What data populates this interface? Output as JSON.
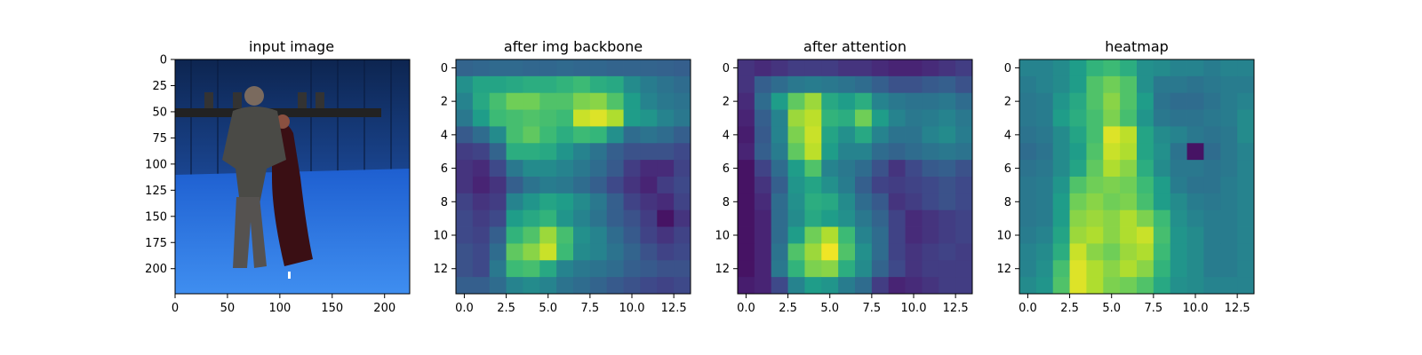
{
  "chart_data": [
    {
      "type": "image",
      "title": "input image",
      "image_size": [
        224,
        224
      ],
      "xticks": [
        0,
        50,
        100,
        150,
        200
      ],
      "yticks": [
        0,
        25,
        50,
        75,
        100,
        125,
        150,
        175,
        200
      ],
      "tick_labels_x": [
        "0",
        "50",
        "100",
        "150",
        "200"
      ],
      "tick_labels_y": [
        "0",
        "25",
        "50",
        "75",
        "100",
        "125",
        "150",
        "175",
        "200"
      ]
    },
    {
      "type": "heatmap",
      "title": "after img backbone",
      "colormap": "viridis",
      "vrange": [
        0,
        1
      ],
      "xticks": [
        0.0,
        2.5,
        5.0,
        7.5,
        10.0,
        12.5
      ],
      "tick_labels_x": [
        "0.0",
        "2.5",
        "5.0",
        "7.5",
        "10.0",
        "12.5"
      ],
      "yticks": [
        0,
        2,
        4,
        6,
        8,
        10,
        12
      ],
      "tick_labels_y": [
        "0",
        "2",
        "4",
        "6",
        "8",
        "10",
        "12"
      ],
      "values": [
        [
          0.32,
          0.33,
          0.34,
          0.34,
          0.33,
          0.33,
          0.34,
          0.33,
          0.33,
          0.32,
          0.32,
          0.32,
          0.31,
          0.3
        ],
        [
          0.5,
          0.58,
          0.58,
          0.6,
          0.62,
          0.62,
          0.65,
          0.68,
          0.62,
          0.6,
          0.48,
          0.42,
          0.38,
          0.35
        ],
        [
          0.45,
          0.6,
          0.7,
          0.78,
          0.78,
          0.72,
          0.72,
          0.8,
          0.82,
          0.72,
          0.55,
          0.45,
          0.4,
          0.38
        ],
        [
          0.4,
          0.55,
          0.68,
          0.7,
          0.72,
          0.7,
          0.68,
          0.92,
          0.95,
          0.88,
          0.55,
          0.52,
          0.45,
          0.4
        ],
        [
          0.28,
          0.35,
          0.48,
          0.7,
          0.75,
          0.68,
          0.62,
          0.68,
          0.66,
          0.5,
          0.35,
          0.38,
          0.35,
          0.3
        ],
        [
          0.18,
          0.2,
          0.32,
          0.62,
          0.62,
          0.6,
          0.52,
          0.45,
          0.38,
          0.3,
          0.25,
          0.25,
          0.25,
          0.22
        ],
        [
          0.15,
          0.12,
          0.22,
          0.4,
          0.48,
          0.48,
          0.45,
          0.4,
          0.35,
          0.28,
          0.18,
          0.12,
          0.12,
          0.2
        ],
        [
          0.15,
          0.1,
          0.15,
          0.3,
          0.38,
          0.42,
          0.4,
          0.35,
          0.3,
          0.22,
          0.15,
          0.1,
          0.18,
          0.22
        ],
        [
          0.2,
          0.15,
          0.18,
          0.45,
          0.52,
          0.58,
          0.55,
          0.48,
          0.4,
          0.3,
          0.2,
          0.15,
          0.12,
          0.2
        ],
        [
          0.22,
          0.18,
          0.22,
          0.55,
          0.6,
          0.65,
          0.52,
          0.45,
          0.38,
          0.3,
          0.25,
          0.18,
          0.05,
          0.15
        ],
        [
          0.22,
          0.2,
          0.3,
          0.65,
          0.72,
          0.85,
          0.7,
          0.5,
          0.45,
          0.35,
          0.28,
          0.2,
          0.15,
          0.2
        ],
        [
          0.25,
          0.22,
          0.35,
          0.75,
          0.82,
          0.92,
          0.68,
          0.48,
          0.45,
          0.38,
          0.32,
          0.25,
          0.2,
          0.22
        ],
        [
          0.25,
          0.22,
          0.4,
          0.68,
          0.7,
          0.6,
          0.45,
          0.4,
          0.38,
          0.35,
          0.3,
          0.28,
          0.25,
          0.25
        ],
        [
          0.3,
          0.3,
          0.35,
          0.45,
          0.48,
          0.45,
          0.38,
          0.35,
          0.32,
          0.28,
          0.25,
          0.22,
          0.2,
          0.22
        ]
      ]
    },
    {
      "type": "heatmap",
      "title": "after attention",
      "colormap": "viridis",
      "vrange": [
        0,
        1
      ],
      "xticks": [
        0.0,
        2.5,
        5.0,
        7.5,
        10.0,
        12.5
      ],
      "tick_labels_x": [
        "0.0",
        "2.5",
        "5.0",
        "7.5",
        "10.0",
        "12.5"
      ],
      "yticks": [
        0,
        2,
        4,
        6,
        8,
        10,
        12
      ],
      "tick_labels_y": [
        "0",
        "2",
        "4",
        "6",
        "8",
        "10",
        "12"
      ],
      "values": [
        [
          0.15,
          0.12,
          0.15,
          0.18,
          0.18,
          0.18,
          0.15,
          0.15,
          0.12,
          0.1,
          0.1,
          0.12,
          0.15,
          0.18
        ],
        [
          0.15,
          0.3,
          0.35,
          0.4,
          0.42,
          0.4,
          0.38,
          0.35,
          0.3,
          0.25,
          0.25,
          0.28,
          0.3,
          0.25
        ],
        [
          0.12,
          0.35,
          0.55,
          0.75,
          0.85,
          0.6,
          0.55,
          0.62,
          0.45,
          0.4,
          0.38,
          0.38,
          0.4,
          0.35
        ],
        [
          0.1,
          0.3,
          0.45,
          0.85,
          0.9,
          0.65,
          0.62,
          0.78,
          0.55,
          0.45,
          0.4,
          0.42,
          0.45,
          0.4
        ],
        [
          0.08,
          0.28,
          0.45,
          0.8,
          0.92,
          0.58,
          0.5,
          0.6,
          0.45,
          0.38,
          0.38,
          0.45,
          0.48,
          0.42
        ],
        [
          0.1,
          0.3,
          0.42,
          0.75,
          0.9,
          0.55,
          0.45,
          0.45,
          0.35,
          0.32,
          0.35,
          0.38,
          0.4,
          0.38
        ],
        [
          0.05,
          0.2,
          0.35,
          0.55,
          0.72,
          0.45,
          0.4,
          0.35,
          0.25,
          0.15,
          0.22,
          0.28,
          0.3,
          0.25
        ],
        [
          0.05,
          0.15,
          0.3,
          0.52,
          0.58,
          0.5,
          0.42,
          0.3,
          0.2,
          0.18,
          0.2,
          0.22,
          0.25,
          0.22
        ],
        [
          0.05,
          0.12,
          0.35,
          0.5,
          0.62,
          0.6,
          0.48,
          0.35,
          0.28,
          0.15,
          0.18,
          0.22,
          0.25,
          0.22
        ],
        [
          0.05,
          0.1,
          0.35,
          0.48,
          0.6,
          0.55,
          0.5,
          0.4,
          0.32,
          0.2,
          0.12,
          0.15,
          0.18,
          0.2
        ],
        [
          0.05,
          0.1,
          0.35,
          0.55,
          0.78,
          0.88,
          0.68,
          0.45,
          0.35,
          0.2,
          0.12,
          0.15,
          0.18,
          0.2
        ],
        [
          0.05,
          0.1,
          0.38,
          0.72,
          0.85,
          0.98,
          0.72,
          0.5,
          0.35,
          0.2,
          0.15,
          0.18,
          0.2,
          0.18
        ],
        [
          0.05,
          0.1,
          0.4,
          0.65,
          0.8,
          0.82,
          0.62,
          0.48,
          0.32,
          0.22,
          0.15,
          0.18,
          0.18,
          0.18
        ],
        [
          0.08,
          0.1,
          0.22,
          0.45,
          0.55,
          0.52,
          0.42,
          0.35,
          0.18,
          0.1,
          0.12,
          0.15,
          0.18,
          0.18
        ]
      ]
    },
    {
      "type": "heatmap",
      "title": "heatmap",
      "colormap": "viridis",
      "vrange": [
        0,
        1
      ],
      "xticks": [
        0.0,
        2.5,
        5.0,
        7.5,
        10.0,
        12.5
      ],
      "tick_labels_x": [
        "0.0",
        "2.5",
        "5.0",
        "7.5",
        "10.0",
        "12.5"
      ],
      "yticks": [
        0,
        2,
        4,
        6,
        8,
        10,
        12
      ],
      "tick_labels_y": [
        "0",
        "2",
        "4",
        "6",
        "8",
        "10",
        "12"
      ],
      "values": [
        [
          0.45,
          0.45,
          0.48,
          0.55,
          0.65,
          0.68,
          0.62,
          0.5,
          0.48,
          0.45,
          0.45,
          0.42,
          0.45,
          0.45
        ],
        [
          0.42,
          0.45,
          0.48,
          0.55,
          0.72,
          0.78,
          0.72,
          0.5,
          0.4,
          0.4,
          0.38,
          0.4,
          0.42,
          0.42
        ],
        [
          0.4,
          0.42,
          0.52,
          0.6,
          0.72,
          0.82,
          0.72,
          0.55,
          0.38,
          0.35,
          0.35,
          0.38,
          0.42,
          0.45
        ],
        [
          0.4,
          0.42,
          0.55,
          0.62,
          0.7,
          0.8,
          0.7,
          0.52,
          0.4,
          0.38,
          0.38,
          0.4,
          0.42,
          0.48
        ],
        [
          0.38,
          0.4,
          0.48,
          0.58,
          0.7,
          0.95,
          0.9,
          0.58,
          0.48,
          0.45,
          0.4,
          0.38,
          0.4,
          0.48
        ],
        [
          0.35,
          0.38,
          0.48,
          0.55,
          0.72,
          0.92,
          0.88,
          0.58,
          0.5,
          0.38,
          0.05,
          0.35,
          0.4,
          0.45
        ],
        [
          0.38,
          0.4,
          0.48,
          0.58,
          0.75,
          0.88,
          0.82,
          0.62,
          0.48,
          0.4,
          0.4,
          0.38,
          0.4,
          0.45
        ],
        [
          0.4,
          0.42,
          0.52,
          0.72,
          0.78,
          0.8,
          0.78,
          0.68,
          0.55,
          0.42,
          0.38,
          0.38,
          0.42,
          0.45
        ],
        [
          0.4,
          0.42,
          0.55,
          0.78,
          0.82,
          0.78,
          0.8,
          0.7,
          0.55,
          0.48,
          0.42,
          0.4,
          0.42,
          0.45
        ],
        [
          0.4,
          0.42,
          0.55,
          0.82,
          0.85,
          0.82,
          0.88,
          0.8,
          0.68,
          0.5,
          0.45,
          0.42,
          0.42,
          0.45
        ],
        [
          0.42,
          0.45,
          0.58,
          0.85,
          0.88,
          0.82,
          0.88,
          0.92,
          0.7,
          0.52,
          0.48,
          0.42,
          0.42,
          0.45
        ],
        [
          0.45,
          0.48,
          0.62,
          0.92,
          0.82,
          0.78,
          0.85,
          0.88,
          0.68,
          0.52,
          0.48,
          0.42,
          0.42,
          0.45
        ],
        [
          0.45,
          0.5,
          0.7,
          0.95,
          0.88,
          0.82,
          0.88,
          0.82,
          0.65,
          0.52,
          0.48,
          0.42,
          0.42,
          0.45
        ],
        [
          0.48,
          0.52,
          0.72,
          0.95,
          0.88,
          0.8,
          0.78,
          0.72,
          0.6,
          0.5,
          0.48,
          0.45,
          0.45,
          0.45
        ]
      ]
    }
  ]
}
